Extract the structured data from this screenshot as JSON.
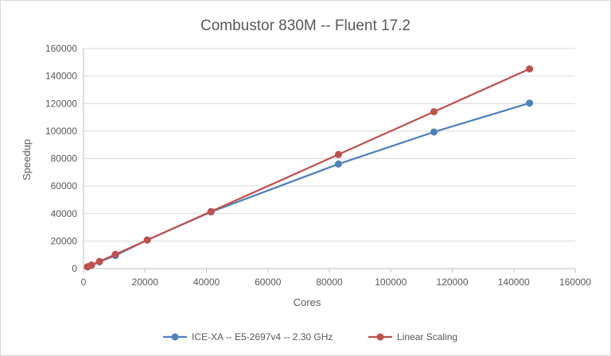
{
  "chart_data": {
    "type": "scatter",
    "title": "Combustor 830M -- Fluent 17.2",
    "xlabel": "Cores",
    "ylabel": "Speedup",
    "xlim": [
      0,
      160000
    ],
    "ylim": [
      0,
      160000
    ],
    "x_ticks": [
      0,
      20000,
      40000,
      60000,
      80000,
      100000,
      120000,
      140000,
      160000
    ],
    "y_ticks": [
      0,
      20000,
      40000,
      60000,
      80000,
      100000,
      120000,
      140000,
      160000
    ],
    "x_tick_labels": [
      "0",
      "20000",
      "40000",
      "60000",
      "80000",
      "100000",
      "120000",
      "140000",
      "160000"
    ],
    "y_tick_labels": [
      "0",
      "20000",
      "40000",
      "60000",
      "80000",
      "100000",
      "120000",
      "140000",
      "160000"
    ],
    "grid": "horizontal",
    "legend_position": "bottom",
    "series": [
      {
        "name": "ICE-XA -- E5-2697v4 -- 2.30 GHz",
        "color": "#4f81bd",
        "points": [
          {
            "x": 1296,
            "y": 1296
          },
          {
            "x": 2592,
            "y": 2500
          },
          {
            "x": 5184,
            "y": 4900
          },
          {
            "x": 10368,
            "y": 9500
          },
          {
            "x": 20736,
            "y": 20800
          },
          {
            "x": 41472,
            "y": 41200
          },
          {
            "x": 82944,
            "y": 76000
          },
          {
            "x": 114048,
            "y": 99300
          },
          {
            "x": 145152,
            "y": 120300
          }
        ]
      },
      {
        "name": "Linear Scaling",
        "color": "#c0504d",
        "points": [
          {
            "x": 1296,
            "y": 1296
          },
          {
            "x": 2592,
            "y": 2592
          },
          {
            "x": 5184,
            "y": 5184
          },
          {
            "x": 10368,
            "y": 10368
          },
          {
            "x": 20736,
            "y": 20736
          },
          {
            "x": 41472,
            "y": 41472
          },
          {
            "x": 82944,
            "y": 82944
          },
          {
            "x": 114048,
            "y": 114048
          },
          {
            "x": 145152,
            "y": 145152
          }
        ]
      }
    ]
  }
}
